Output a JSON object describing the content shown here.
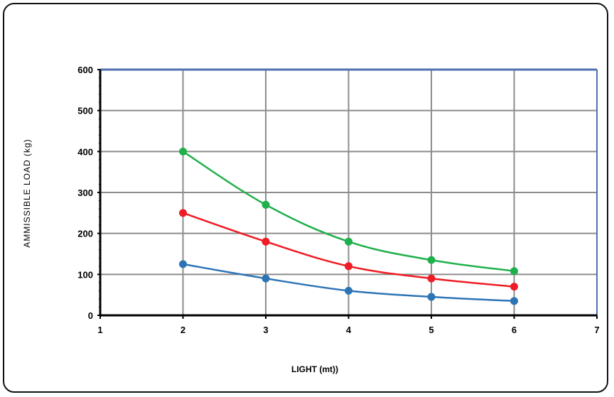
{
  "chart_data": {
    "type": "line",
    "title": "",
    "xlabel": "LIGHT (mt))",
    "ylabel": "AMMISSIBLE LOAD  (kg)",
    "xlim": [
      1,
      7
    ],
    "ylim": [
      0,
      600
    ],
    "x_ticks": [
      "1",
      "2",
      "3",
      "4",
      "5",
      "6",
      "7"
    ],
    "y_ticks": [
      "0",
      "100",
      "200",
      "300",
      "400",
      "500",
      "600"
    ],
    "grid": true,
    "x": [
      2,
      3,
      4,
      5,
      6
    ],
    "series": [
      {
        "color": "#1fb04b",
        "values": [
          400,
          270,
          180,
          135,
          108
        ]
      },
      {
        "color": "#ee1c24",
        "values": [
          250,
          180,
          120,
          90,
          70
        ]
      },
      {
        "color": "#2e74b5",
        "values": [
          125,
          90,
          60,
          45,
          35
        ]
      }
    ],
    "colors": {
      "grid": "#8c8c8c",
      "top_border": "#4f6fb0",
      "right_border": "#4f6fb0",
      "axis": "#000000"
    }
  }
}
